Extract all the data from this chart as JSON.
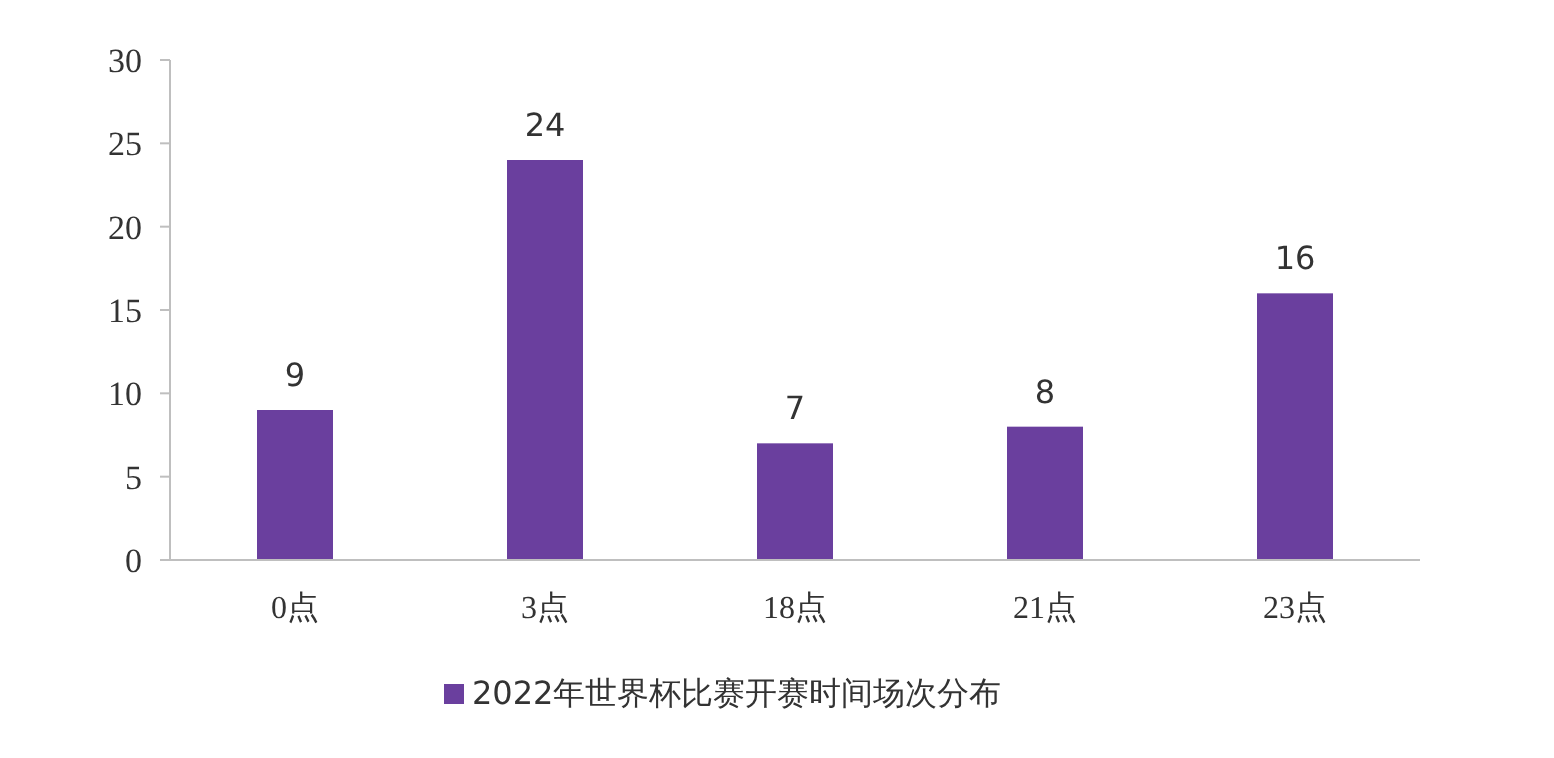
{
  "chart_data": {
    "type": "bar",
    "categories": [
      "0点",
      "3点",
      "18点",
      "21点",
      "23点"
    ],
    "series": [
      {
        "name": "2022年世界杯比赛开赛时间场次分布",
        "color": "#6a3f9e",
        "values": [
          9,
          24,
          7,
          8,
          16
        ]
      }
    ],
    "ylim": [
      0,
      30
    ],
    "yticks": [
      0,
      5,
      10,
      15,
      20,
      25,
      30
    ],
    "data_labels": true,
    "legend": "bottom",
    "grid": false
  }
}
